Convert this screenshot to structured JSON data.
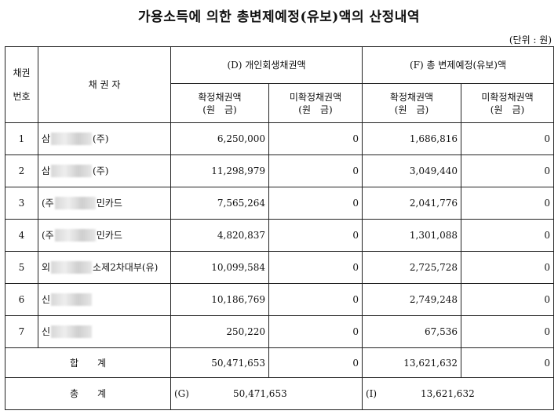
{
  "title": "가용소득에 의한 총변제예정(유보)액의 산정내역",
  "unit": "(단위 : 원)",
  "headers": {
    "no_line1": "채권",
    "no_line2": "번호",
    "creditor": "채 권 자",
    "group_d": "(D) 개인회생채권액",
    "group_f": "(F) 총 변제예정(유보)액",
    "confirmed": "확정채권액",
    "unconfirmed": "미확정채권액",
    "won": "(원　금)"
  },
  "rows": [
    {
      "no": "1",
      "prefix": "삼",
      "suffix": "(주)",
      "d_confirmed": "6,250,000",
      "d_unconfirmed": "0",
      "f_confirmed": "1,686,816",
      "f_unconfirmed": "0"
    },
    {
      "no": "2",
      "prefix": "삼",
      "suffix": "(주)",
      "d_confirmed": "11,298,979",
      "d_unconfirmed": "0",
      "f_confirmed": "3,049,440",
      "f_unconfirmed": "0"
    },
    {
      "no": "3",
      "prefix": "(주",
      "suffix": "민카드",
      "d_confirmed": "7,565,264",
      "d_unconfirmed": "0",
      "f_confirmed": "2,041,776",
      "f_unconfirmed": "0"
    },
    {
      "no": "4",
      "prefix": "(주",
      "suffix": "민카드",
      "d_confirmed": "4,820,837",
      "d_unconfirmed": "0",
      "f_confirmed": "1,301,088",
      "f_unconfirmed": "0"
    },
    {
      "no": "5",
      "prefix": "외",
      "suffix": "소제2차대부(유)",
      "d_confirmed": "10,099,584",
      "d_unconfirmed": "0",
      "f_confirmed": "2,725,728",
      "f_unconfirmed": "0"
    },
    {
      "no": "6",
      "prefix": "신",
      "suffix": "",
      "d_confirmed": "10,186,769",
      "d_unconfirmed": "0",
      "f_confirmed": "2,749,248",
      "f_unconfirmed": "0"
    },
    {
      "no": "7",
      "prefix": "신",
      "suffix": "",
      "d_confirmed": "250,220",
      "d_unconfirmed": "0",
      "f_confirmed": "67,536",
      "f_unconfirmed": "0"
    }
  ],
  "subtotal": {
    "label": "합　　계",
    "d_confirmed": "50,471,653",
    "d_unconfirmed": "0",
    "f_confirmed": "13,621,632",
    "f_unconfirmed": "0"
  },
  "total": {
    "label": "총　　계",
    "g_tag": "(G)",
    "g_value": "50,471,653",
    "i_tag": "(I)",
    "i_value": "13,621,632"
  }
}
